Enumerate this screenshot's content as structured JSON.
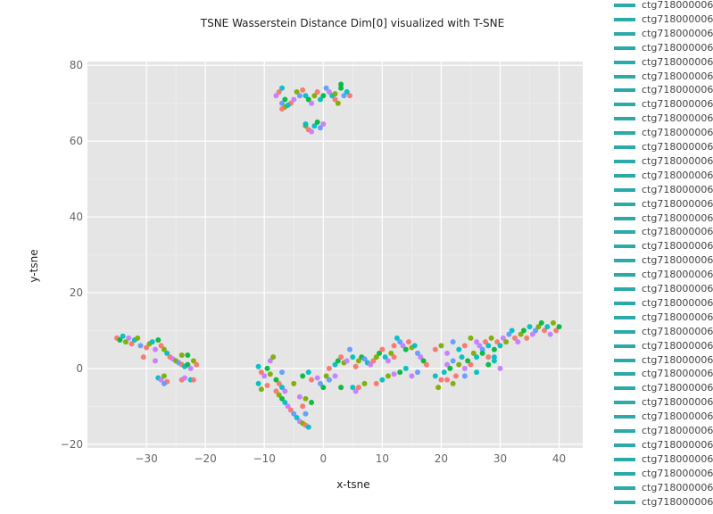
{
  "chart_data": {
    "type": "scatter",
    "title": "TSNE Wasserstein Distance Dim[0] visualized with T-SNE",
    "xlabel": "x-tsne",
    "ylabel": "y-tsne",
    "xlim": [
      -40,
      44
    ],
    "ylim": [
      -21,
      81
    ],
    "xticks": [
      -30,
      -20,
      -10,
      0,
      10,
      20,
      30,
      40
    ],
    "yticks": [
      -20,
      0,
      20,
      40,
      60,
      80
    ],
    "xtick_labels": [
      "−30",
      "−20",
      "−10",
      "0",
      "10",
      "20",
      "30",
      "40"
    ],
    "ytick_labels": [
      "−20",
      "0",
      "20",
      "40",
      "60",
      "80"
    ],
    "grid": true,
    "background": "#e5e5e5",
    "palette": [
      "#f8766d",
      "#7cae00",
      "#00bfc4",
      "#c77cff",
      "#00ba38",
      "#619cff"
    ],
    "legend_position": "right",
    "legend_swatch_color": "#2ca9a9",
    "legend": [
      "ctg718000006",
      "ctg718000006",
      "ctg718000006",
      "ctg718000006",
      "ctg718000006",
      "ctg718000006",
      "ctg718000006",
      "ctg718000006",
      "ctg718000006",
      "ctg718000006",
      "ctg718000006",
      "ctg718000006",
      "ctg718000006",
      "ctg718000006",
      "ctg718000006",
      "ctg718000006",
      "ctg718000006",
      "ctg718000006",
      "ctg718000006",
      "ctg718000006",
      "ctg718000006",
      "ctg718000006",
      "ctg718000006",
      "ctg718000006",
      "ctg718000006",
      "ctg718000006",
      "ctg718000006",
      "ctg718000006",
      "ctg718000006",
      "ctg718000006",
      "ctg718000006",
      "ctg718000006",
      "ctg718000006",
      "ctg718000006",
      "ctg718000006",
      "ctg718000006"
    ],
    "points": [
      [
        -35,
        8,
        0
      ],
      [
        -34.5,
        7.5,
        4
      ],
      [
        -34,
        8.5,
        2
      ],
      [
        -33.5,
        7,
        1
      ],
      [
        -33,
        8,
        3
      ],
      [
        -32.5,
        6.5,
        0
      ],
      [
        -32,
        7.5,
        2
      ],
      [
        -31.5,
        8,
        1
      ],
      [
        -31,
        6,
        5
      ],
      [
        -30,
        5.5,
        0
      ],
      [
        -29.5,
        6.5,
        1
      ],
      [
        -29,
        7,
        2
      ],
      [
        -28.5,
        5,
        3
      ],
      [
        -28,
        7.5,
        4
      ],
      [
        -27.5,
        6,
        0
      ],
      [
        -27,
        5,
        1
      ],
      [
        -26.5,
        4,
        2
      ],
      [
        -26,
        3,
        0
      ],
      [
        -25.5,
        2.5,
        3
      ],
      [
        -25,
        2,
        1
      ],
      [
        -24.5,
        1.5,
        5
      ],
      [
        -24,
        1,
        0
      ],
      [
        -23.5,
        0.5,
        2
      ],
      [
        -23,
        1,
        4
      ],
      [
        -22.5,
        0,
        3
      ],
      [
        -22,
        2,
        1
      ],
      [
        -21.5,
        1,
        0
      ],
      [
        -30.5,
        3,
        0
      ],
      [
        -28.5,
        2,
        3
      ],
      [
        -24,
        3.5,
        1
      ],
      [
        -23,
        3.5,
        4
      ],
      [
        -28,
        -2.5,
        2
      ],
      [
        -27.5,
        -3,
        3
      ],
      [
        -27,
        -2,
        1
      ],
      [
        -26.5,
        -3.5,
        0
      ],
      [
        -27,
        -4,
        5
      ],
      [
        -24,
        -3,
        0
      ],
      [
        -23.5,
        -2.5,
        3
      ],
      [
        -22.5,
        -3,
        2
      ],
      [
        -22,
        -3,
        0
      ],
      [
        -11,
        0.5,
        2
      ],
      [
        -10.5,
        -1,
        0
      ],
      [
        -10,
        -2,
        3
      ],
      [
        -9.5,
        0,
        4
      ],
      [
        -9,
        -1.5,
        1
      ],
      [
        -11,
        -4,
        2
      ],
      [
        -10.5,
        -5.5,
        1
      ],
      [
        -9.5,
        -4.5,
        0
      ],
      [
        -9,
        2,
        3
      ],
      [
        -8.5,
        3,
        1
      ],
      [
        -8,
        -3,
        4
      ],
      [
        -7.5,
        -4,
        0
      ],
      [
        -7,
        -5,
        2
      ],
      [
        -6.5,
        -6,
        3
      ],
      [
        -7,
        -1,
        5
      ],
      [
        -8,
        -6,
        0
      ],
      [
        -7.5,
        -7,
        1
      ],
      [
        -7,
        -8,
        4
      ],
      [
        -6.5,
        -9,
        2
      ],
      [
        -6,
        -10,
        3
      ],
      [
        -5.5,
        -11,
        0
      ],
      [
        -5,
        -12,
        5
      ],
      [
        -4.5,
        -13,
        2
      ],
      [
        -4,
        -14,
        3
      ],
      [
        -3.5,
        -14.5,
        1
      ],
      [
        -3,
        -15,
        0
      ],
      [
        -2.5,
        -15.5,
        2
      ],
      [
        -4,
        -7.5,
        3
      ],
      [
        -3,
        -8,
        1
      ],
      [
        -3.5,
        -10,
        0
      ],
      [
        -2,
        -9,
        4
      ],
      [
        -3,
        -12,
        5
      ],
      [
        -5,
        -4,
        1
      ],
      [
        -3.5,
        -2,
        4
      ],
      [
        -2.5,
        -1,
        2
      ],
      [
        -2,
        -3,
        0
      ],
      [
        -1,
        -2.5,
        3
      ],
      [
        -0.5,
        -4,
        5
      ],
      [
        0,
        -5,
        4
      ],
      [
        0.5,
        -2,
        1
      ],
      [
        1,
        0,
        0
      ],
      [
        2,
        1,
        2
      ],
      [
        2.5,
        2,
        4
      ],
      [
        3,
        3,
        0
      ],
      [
        3.5,
        1.5,
        1
      ],
      [
        4,
        2,
        3
      ],
      [
        4.5,
        5,
        5
      ],
      [
        5,
        3,
        2
      ],
      [
        5.5,
        0.5,
        0
      ],
      [
        6,
        2,
        1
      ],
      [
        6.5,
        3,
        4
      ],
      [
        7,
        2.5,
        5
      ],
      [
        7.5,
        1.5,
        2
      ],
      [
        8,
        1,
        3
      ],
      [
        8.5,
        2,
        0
      ],
      [
        9,
        3,
        1
      ],
      [
        9.5,
        4,
        4
      ],
      [
        10,
        5,
        0
      ],
      [
        10.5,
        3,
        2
      ],
      [
        11,
        2,
        3
      ],
      [
        11.5,
        4,
        1
      ],
      [
        12,
        6,
        0
      ],
      [
        12.5,
        8,
        2
      ],
      [
        13,
        7,
        5
      ],
      [
        13.5,
        6,
        3
      ],
      [
        14,
        5,
        4
      ],
      [
        14.5,
        7,
        0
      ],
      [
        15,
        5.5,
        1
      ],
      [
        15.5,
        6,
        2
      ],
      [
        16,
        4,
        5
      ],
      [
        16.5,
        3,
        3
      ],
      [
        17,
        2,
        4
      ],
      [
        17.5,
        1,
        0
      ],
      [
        5,
        -5,
        2
      ],
      [
        5.5,
        -6,
        3
      ],
      [
        6,
        -5,
        0
      ],
      [
        7,
        -4,
        1
      ],
      [
        3,
        -5,
        4
      ],
      [
        2,
        -2,
        3
      ],
      [
        1,
        -3,
        5
      ],
      [
        9,
        -4,
        0
      ],
      [
        10,
        -3,
        2
      ],
      [
        11,
        -2,
        1
      ],
      [
        12,
        -1.5,
        3
      ],
      [
        13,
        -1,
        4
      ],
      [
        14,
        0,
        2
      ],
      [
        15,
        -2,
        3
      ],
      [
        16,
        -1,
        5
      ],
      [
        12,
        3,
        0
      ],
      [
        19,
        -2,
        2
      ],
      [
        19.5,
        -5,
        1
      ],
      [
        20,
        -3,
        0
      ],
      [
        20.5,
        -1,
        2
      ],
      [
        21,
        1,
        3
      ],
      [
        21.5,
        0,
        4
      ],
      [
        22,
        2,
        5
      ],
      [
        22.5,
        -2,
        0
      ],
      [
        23,
        1,
        1
      ],
      [
        23.5,
        3,
        2
      ],
      [
        24,
        0,
        3
      ],
      [
        24.5,
        2,
        4
      ],
      [
        25,
        1,
        0
      ],
      [
        25.5,
        4,
        1
      ],
      [
        26,
        3,
        2
      ],
      [
        26.5,
        6,
        3
      ],
      [
        27,
        5,
        5
      ],
      [
        27.5,
        7,
        0
      ],
      [
        28,
        6,
        2
      ],
      [
        28.5,
        8,
        1
      ],
      [
        29,
        5,
        4
      ],
      [
        29.5,
        7,
        0
      ],
      [
        30,
        6,
        2
      ],
      [
        30.5,
        8,
        3
      ],
      [
        31,
        7,
        1
      ],
      [
        31.5,
        9,
        5
      ],
      [
        32,
        10,
        2
      ],
      [
        32.5,
        8,
        0
      ],
      [
        33,
        7,
        3
      ],
      [
        33.5,
        9,
        1
      ],
      [
        34,
        10,
        4
      ],
      [
        34.5,
        8,
        0
      ],
      [
        35,
        11,
        2
      ],
      [
        35.5,
        9,
        3
      ],
      [
        36,
        10,
        5
      ],
      [
        36.5,
        11,
        1
      ],
      [
        37,
        12,
        4
      ],
      [
        37.5,
        10,
        0
      ],
      [
        38,
        11,
        2
      ],
      [
        38.5,
        9,
        3
      ],
      [
        39,
        12,
        1
      ],
      [
        39.5,
        10,
        0
      ],
      [
        40,
        11,
        4
      ],
      [
        19,
        5,
        0
      ],
      [
        20,
        6,
        1
      ],
      [
        21,
        4,
        3
      ],
      [
        22,
        7,
        5
      ],
      [
        23,
        5,
        2
      ],
      [
        24,
        6,
        0
      ],
      [
        25,
        8,
        1
      ],
      [
        26,
        7,
        3
      ],
      [
        27,
        4,
        4
      ],
      [
        28,
        3,
        0
      ],
      [
        29,
        2,
        2
      ],
      [
        30,
        0,
        3
      ],
      [
        26,
        -1,
        2
      ],
      [
        24,
        -2,
        5
      ],
      [
        22,
        -4,
        1
      ],
      [
        21,
        -3,
        0
      ],
      [
        28,
        1,
        4
      ],
      [
        29,
        3,
        2
      ],
      [
        -7,
        74,
        2
      ],
      [
        -7.5,
        73,
        0
      ],
      [
        -8,
        72,
        3
      ],
      [
        -6.5,
        71,
        4
      ],
      [
        -7,
        70,
        5
      ],
      [
        -6.5,
        69,
        1
      ],
      [
        -5.5,
        70,
        0
      ],
      [
        -5,
        71,
        3
      ],
      [
        -4.5,
        73,
        1
      ],
      [
        -4,
        72,
        5
      ],
      [
        -3.5,
        73.5,
        0
      ],
      [
        -3,
        72,
        2
      ],
      [
        -2.5,
        71,
        4
      ],
      [
        -2,
        70,
        3
      ],
      [
        -1.5,
        72,
        1
      ],
      [
        -1,
        73,
        0
      ],
      [
        -0.5,
        71,
        2
      ],
      [
        0,
        72,
        4
      ],
      [
        0.5,
        74,
        5
      ],
      [
        1,
        73,
        3
      ],
      [
        1.5,
        72,
        2
      ],
      [
        2,
        71,
        0
      ],
      [
        2.5,
        70,
        1
      ],
      [
        3,
        74,
        4
      ],
      [
        3.5,
        72,
        5
      ],
      [
        4,
        73,
        2
      ],
      [
        4.5,
        72,
        0
      ],
      [
        -3,
        64,
        1
      ],
      [
        -2.5,
        63,
        0
      ],
      [
        -2,
        62.5,
        3
      ],
      [
        -1.5,
        64,
        2
      ],
      [
        -1,
        65,
        4
      ],
      [
        -0.5,
        63.5,
        5
      ],
      [
        0,
        64.5,
        3
      ],
      [
        -7,
        68.5,
        0
      ],
      [
        -6,
        69.5,
        2
      ],
      [
        2,
        72.5,
        1
      ],
      [
        3,
        75,
        4
      ],
      [
        -3,
        64.5,
        2
      ]
    ]
  }
}
